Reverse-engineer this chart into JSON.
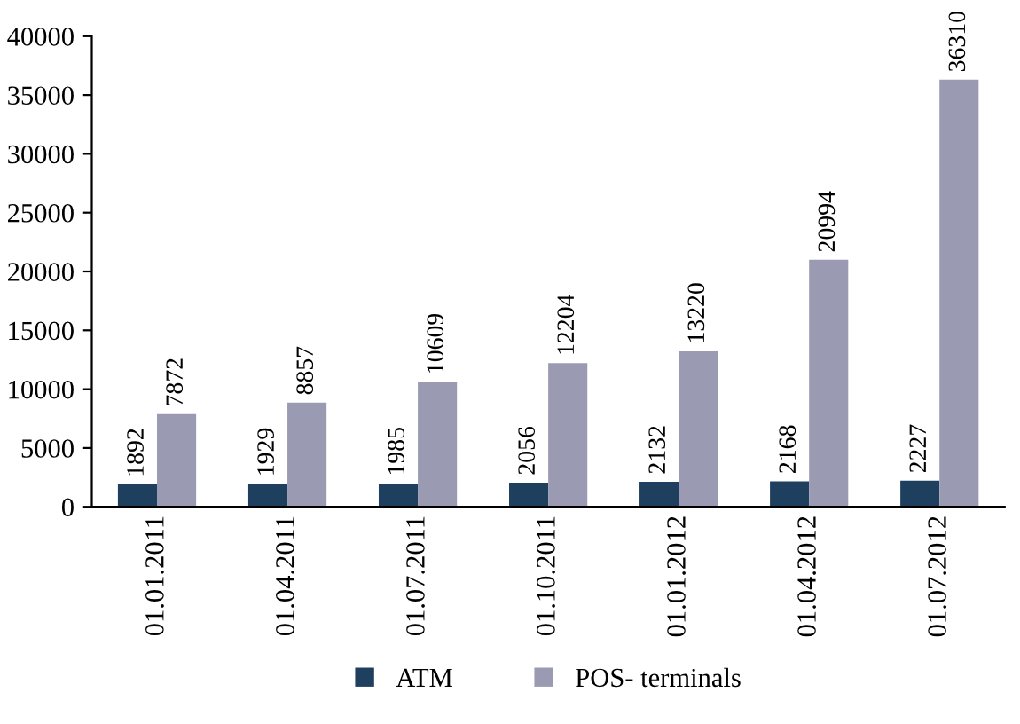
{
  "chart_data": {
    "type": "bar",
    "categories": [
      "01.01.2011",
      "01.04.2011",
      "01.07.2011",
      "01.10.2011",
      "01.01.2012",
      "01.04.2012",
      "01.07.2012"
    ],
    "series": [
      {
        "name": "ATM",
        "color": "#1f3f5f",
        "values": [
          1892,
          1929,
          1985,
          2056,
          2132,
          2168,
          2227
        ]
      },
      {
        "name": "POS- terminals",
        "color": "#9a9ab2",
        "values": [
          7872,
          8857,
          10609,
          12204,
          13220,
          20994,
          36310
        ]
      }
    ],
    "ylim": [
      0,
      40000
    ],
    "yticks": [
      0,
      5000,
      10000,
      15000,
      20000,
      25000,
      30000,
      35000,
      40000
    ],
    "grid": false,
    "legend": "bottom",
    "data_labels": true
  }
}
